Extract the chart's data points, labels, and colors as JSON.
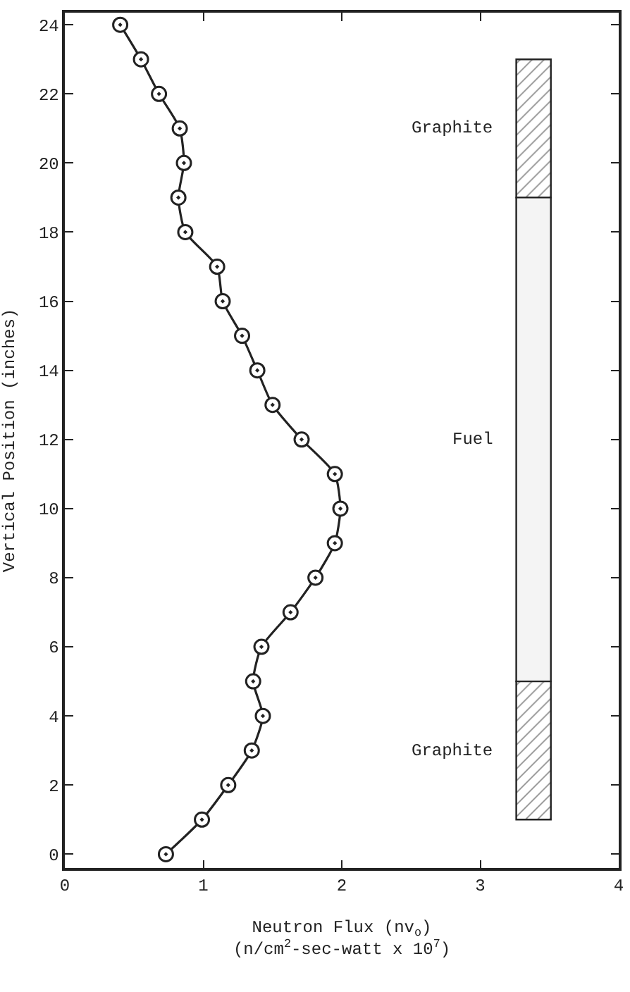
{
  "chart_data": {
    "type": "line",
    "xlabel": "Neutron Flux (nv$_{o}$)\n(n/cm$^{2}$-sec-watt x 10$^{7}$)",
    "ylabel": "Vertical Position (inches)",
    "xlim": [
      0,
      4
    ],
    "ylim": [
      -0.4,
      24.35
    ],
    "xticks": [
      0,
      1,
      2,
      3,
      4
    ],
    "yticks": [
      0,
      2,
      4,
      6,
      8,
      10,
      12,
      14,
      16,
      18,
      20,
      22,
      24
    ],
    "marker": "circle",
    "line_style": "solid",
    "series": [
      {
        "color": "#222222",
        "x": [
          0.73,
          0.99,
          1.18,
          1.35,
          1.43,
          1.36,
          1.42,
          1.63,
          1.81,
          1.95,
          1.99,
          1.95,
          1.71,
          1.5,
          1.39,
          1.28,
          1.14,
          1.1,
          0.87,
          0.82,
          0.86,
          0.83,
          0.68,
          0.55,
          0.4
        ],
        "values": [
          0,
          1,
          2,
          3,
          4,
          5,
          6,
          7,
          8,
          9,
          10,
          11,
          12,
          13,
          14,
          15,
          16,
          17,
          18,
          19,
          20,
          21,
          22,
          23,
          24
        ]
      },
      {
        "type": "bar",
        "name": "Graphite",
        "x": [
          3.385
        ],
        "base": [
          19
        ],
        "values": [
          4
        ],
        "color": "#222222"
      },
      {
        "type": "bar",
        "name": "Fuel",
        "x": [
          3.385
        ],
        "base": [
          5
        ],
        "values": [
          14
        ],
        "color": "#f4f4f4"
      },
      {
        "type": "bar",
        "name": "Graphite",
        "x": [
          3.385
        ],
        "base": [
          1
        ],
        "values": [
          4
        ],
        "color": "#222222"
      }
    ]
  }
}
